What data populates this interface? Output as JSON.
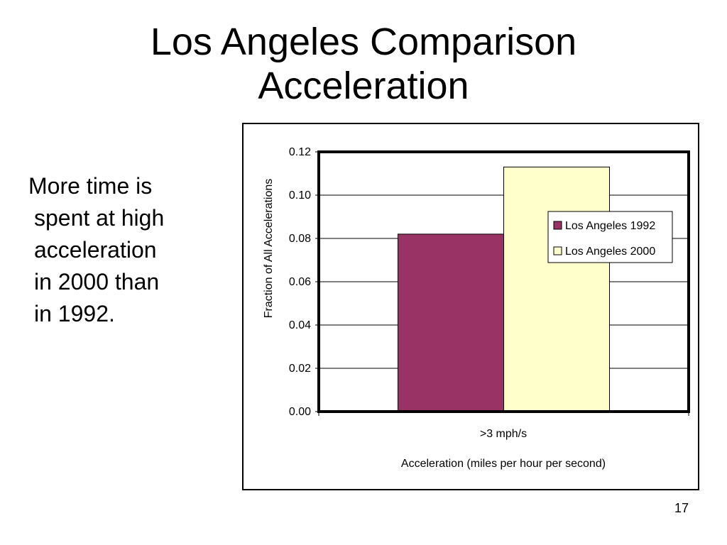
{
  "slide": {
    "title_lines": [
      "Los Angeles Comparison",
      "Acceleration"
    ],
    "body_lines": [
      "More time is",
      "spent at high",
      "acceleration",
      "in 2000 than",
      "in 1992."
    ],
    "page_number": "17"
  },
  "chart_data": {
    "type": "bar",
    "categories": [
      ">3 mph/s"
    ],
    "series": [
      {
        "name": "Los Angeles 1992",
        "values": [
          0.082
        ],
        "color": "#993366"
      },
      {
        "name": "Los Angeles 2000",
        "values": [
          0.113
        ],
        "color": "#FFFFCC"
      }
    ],
    "title": "",
    "xlabel": "Acceleration (miles per hour per second)",
    "ylabel": "Fraction of All Accelerations",
    "ylim": [
      0,
      0.12
    ],
    "yticks": [
      "0.00",
      "0.02",
      "0.04",
      "0.06",
      "0.08",
      "0.10",
      "0.12"
    ],
    "grid": true,
    "legend": "right"
  }
}
